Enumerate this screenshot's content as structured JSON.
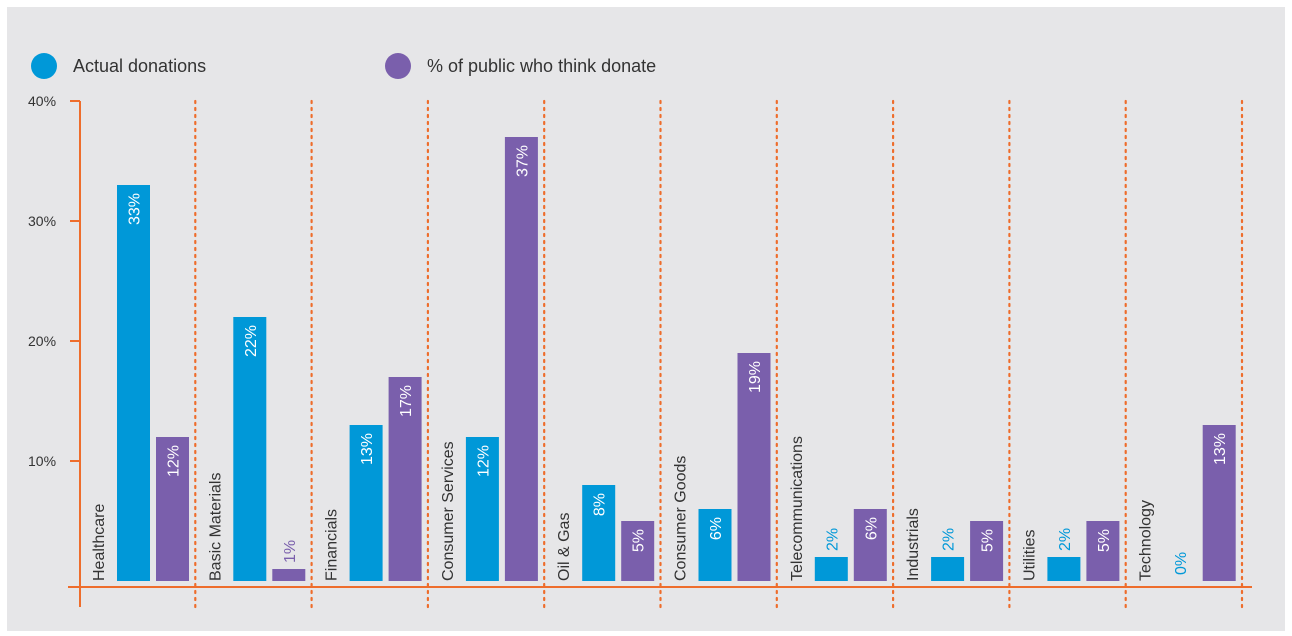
{
  "chart_data": {
    "type": "bar",
    "orientation": "vertical",
    "y_tick_labels": [
      "40%",
      "30%",
      "20%",
      "10%"
    ],
    "y_ticks": [
      40,
      30,
      20,
      10
    ],
    "ylim": [
      0,
      40
    ],
    "grid": false,
    "legend_position": "top-left",
    "categories": [
      "Healthcare",
      "Basic Materials",
      "Financials",
      "Consumer Services",
      "Oil & Gas",
      "Consumer Goods",
      "Telecommunications",
      "Industrials",
      "Utilities",
      "Technology"
    ],
    "series": [
      {
        "name": "Actual donations",
        "color": "#0098d8",
        "values": [
          33,
          22,
          13,
          12,
          8,
          6,
          2,
          2,
          2,
          0
        ],
        "labels": [
          "33%",
          "22%",
          "13%",
          "12%",
          "8%",
          "6%",
          "2%",
          "2%",
          "2%",
          "0%"
        ]
      },
      {
        "name": "% of public who think donate",
        "color": "#7a5fac",
        "values": [
          12,
          1,
          17,
          37,
          5,
          19,
          6,
          5,
          5,
          13
        ],
        "labels": [
          "12%",
          "1%",
          "17%",
          "37%",
          "5%",
          "19%",
          "6%",
          "5%",
          "5%",
          "13%"
        ]
      }
    ],
    "axis_color": "#ee6d2c"
  }
}
